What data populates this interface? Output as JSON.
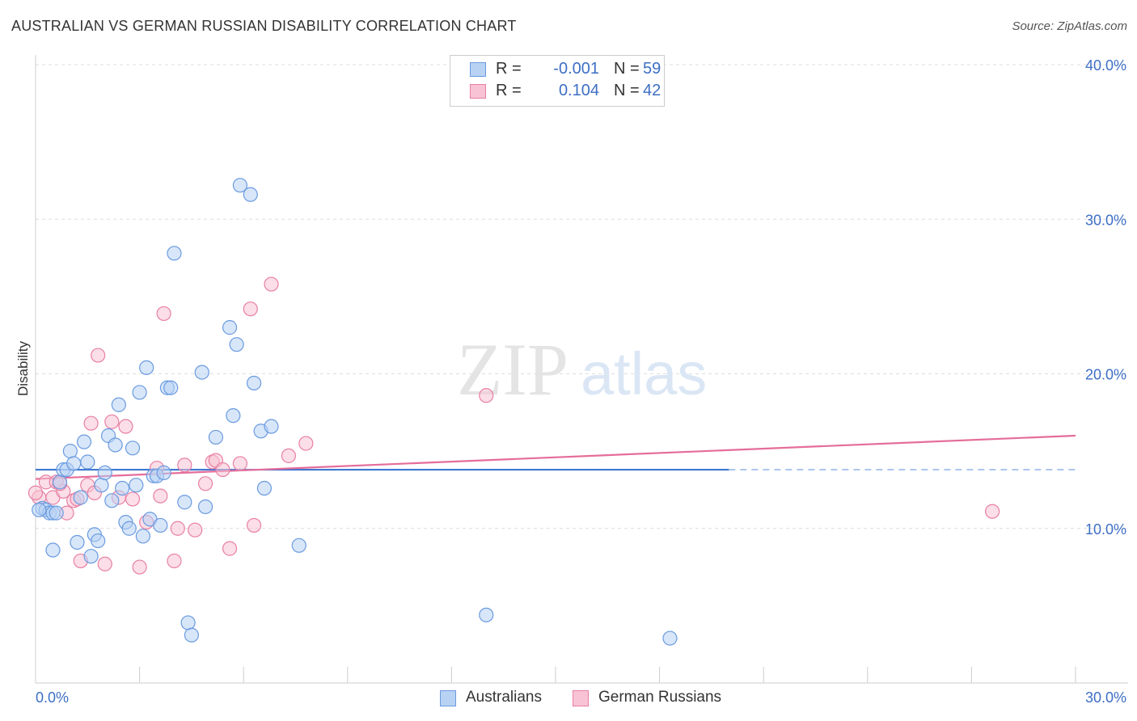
{
  "title": "AUSTRALIAN VS GERMAN RUSSIAN DISABILITY CORRELATION CHART",
  "source": "Source: ZipAtlas.com",
  "watermark": {
    "zip": "ZIP",
    "atlas": "atlas"
  },
  "colors": {
    "blue": "#6a9be0",
    "blue_fill": "#b8d2f4",
    "blue_line": "#2f6fd1",
    "pink": "#e87fa3",
    "pink_fill": "#f8c3d4",
    "pink_line": "#e56d9a",
    "accent_text": "#3d6fc4",
    "grid": "#dddddd"
  },
  "legend": {
    "rows": [
      {
        "r_label": "R =",
        "r_value": "-0.001",
        "n_label": "N =",
        "n_value": "59"
      },
      {
        "r_label": "R =",
        "r_value": "0.104",
        "n_label": "N =",
        "n_value": "42"
      }
    ]
  },
  "bottom_legend": {
    "australians": "Australians",
    "german_russians": "German Russians"
  },
  "chart_data": {
    "type": "scatter",
    "xlabel": "",
    "ylabel": "Disability",
    "xlim": [
      0,
      30
    ],
    "ylim": [
      0,
      40
    ],
    "x_tick_labels": {
      "min": "0.0%",
      "max": "30.0%"
    },
    "y_ticks": [
      10,
      20,
      30,
      40
    ],
    "y_tick_labels": [
      "10.0%",
      "20.0%",
      "30.0%",
      "40.0%"
    ],
    "series": [
      {
        "name": "Australians",
        "points": [
          [
            0.2,
            11.3
          ],
          [
            0.3,
            11.2
          ],
          [
            0.4,
            11.0
          ],
          [
            0.5,
            11.0
          ],
          [
            0.6,
            11.0
          ],
          [
            0.7,
            13.0
          ],
          [
            0.8,
            13.8
          ],
          [
            0.9,
            13.8
          ],
          [
            1.0,
            15.0
          ],
          [
            1.1,
            14.2
          ],
          [
            1.2,
            9.1
          ],
          [
            1.3,
            12.0
          ],
          [
            1.4,
            15.6
          ],
          [
            1.5,
            14.3
          ],
          [
            1.6,
            8.2
          ],
          [
            1.7,
            9.6
          ],
          [
            1.8,
            9.2
          ],
          [
            1.9,
            12.8
          ],
          [
            2.0,
            13.6
          ],
          [
            2.1,
            16.0
          ],
          [
            2.2,
            11.8
          ],
          [
            2.3,
            15.4
          ],
          [
            2.4,
            18.0
          ],
          [
            2.5,
            12.6
          ],
          [
            2.6,
            10.4
          ],
          [
            2.7,
            10.0
          ],
          [
            2.8,
            15.2
          ],
          [
            2.9,
            12.8
          ],
          [
            3.0,
            18.8
          ],
          [
            3.1,
            9.5
          ],
          [
            3.2,
            20.4
          ],
          [
            3.3,
            10.6
          ],
          [
            3.4,
            13.4
          ],
          [
            3.5,
            13.4
          ],
          [
            3.6,
            10.2
          ],
          [
            3.8,
            19.1
          ],
          [
            3.9,
            19.1
          ],
          [
            4.0,
            27.8
          ],
          [
            4.3,
            11.7
          ],
          [
            4.4,
            3.9
          ],
          [
            4.5,
            3.1
          ],
          [
            4.8,
            20.1
          ],
          [
            4.9,
            11.4
          ],
          [
            5.2,
            15.9
          ],
          [
            5.6,
            23.0
          ],
          [
            5.7,
            17.3
          ],
          [
            5.8,
            21.9
          ],
          [
            5.9,
            32.2
          ],
          [
            6.2,
            31.6
          ],
          [
            6.3,
            19.4
          ],
          [
            6.5,
            16.3
          ],
          [
            6.6,
            12.6
          ],
          [
            6.8,
            16.6
          ],
          [
            7.6,
            8.9
          ],
          [
            13.0,
            4.4
          ],
          [
            18.3,
            2.9
          ],
          [
            0.5,
            8.6
          ],
          [
            0.1,
            11.2
          ],
          [
            3.7,
            13.6
          ]
        ]
      },
      {
        "name": "German Russians",
        "points": [
          [
            0.1,
            12.0
          ],
          [
            0.3,
            13.0
          ],
          [
            0.5,
            12.0
          ],
          [
            0.6,
            13.0
          ],
          [
            0.8,
            12.4
          ],
          [
            0.9,
            11.0
          ],
          [
            1.1,
            11.8
          ],
          [
            1.2,
            11.9
          ],
          [
            1.3,
            7.9
          ],
          [
            1.5,
            12.8
          ],
          [
            1.6,
            16.8
          ],
          [
            1.7,
            12.3
          ],
          [
            1.8,
            21.2
          ],
          [
            2.0,
            7.7
          ],
          [
            2.2,
            16.9
          ],
          [
            2.4,
            12.0
          ],
          [
            2.6,
            16.6
          ],
          [
            2.8,
            11.9
          ],
          [
            3.0,
            7.5
          ],
          [
            3.2,
            10.4
          ],
          [
            3.5,
            13.9
          ],
          [
            3.6,
            12.1
          ],
          [
            3.7,
            23.9
          ],
          [
            4.0,
            7.9
          ],
          [
            4.1,
            10.0
          ],
          [
            4.3,
            14.1
          ],
          [
            4.6,
            9.9
          ],
          [
            4.9,
            12.9
          ],
          [
            5.1,
            14.3
          ],
          [
            5.2,
            14.4
          ],
          [
            5.4,
            13.8
          ],
          [
            5.6,
            8.7
          ],
          [
            5.9,
            14.2
          ],
          [
            6.2,
            24.2
          ],
          [
            6.3,
            10.2
          ],
          [
            6.8,
            25.8
          ],
          [
            7.3,
            14.7
          ],
          [
            7.8,
            15.5
          ],
          [
            13.0,
            18.6
          ],
          [
            27.6,
            11.1
          ],
          [
            0.0,
            12.3
          ],
          [
            0.7,
            12.9
          ]
        ]
      }
    ],
    "trend_lines": [
      {
        "name": "Australians",
        "x_start": 0,
        "y_start": 13.8,
        "x_solid_end": 20,
        "x_end": 30,
        "y_end": 13.8
      },
      {
        "name": "German Russians",
        "x_start": 0,
        "y_start": 13.2,
        "x_end": 30,
        "y_end": 16.0
      }
    ]
  }
}
